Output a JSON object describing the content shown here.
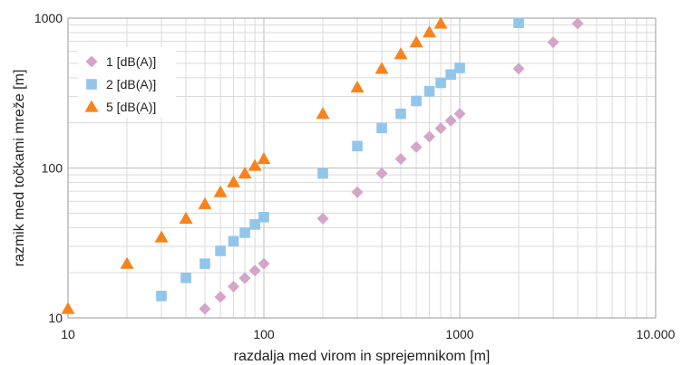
{
  "chart_data": {
    "type": "scatter",
    "xlabel": "razdalja med virom in sprejemnikom [m]",
    "ylabel": "razmik med točkami mreže [m]",
    "x_scale": "log",
    "y_scale": "log",
    "xlim": [
      10,
      10000
    ],
    "ylim": [
      10,
      1000
    ],
    "x_ticks": [
      10,
      100,
      1000,
      10000
    ],
    "x_tick_labels": [
      "10",
      "100",
      "1000",
      "10.000"
    ],
    "y_ticks": [
      10,
      100,
      1000
    ],
    "y_tick_labels": [
      "10",
      "100",
      "1000"
    ],
    "grid": true,
    "legend_position": "top-left",
    "series": [
      {
        "name": "1 [dB(A)]",
        "marker": "diamond",
        "color": "#d4a5c8",
        "points": [
          [
            50,
            11.5
          ],
          [
            60,
            13.8
          ],
          [
            70,
            16.2
          ],
          [
            80,
            18.4
          ],
          [
            90,
            20.7
          ],
          [
            100,
            23
          ],
          [
            200,
            46
          ],
          [
            300,
            69
          ],
          [
            400,
            92
          ],
          [
            500,
            115
          ],
          [
            600,
            138
          ],
          [
            700,
            162
          ],
          [
            800,
            184
          ],
          [
            900,
            207
          ],
          [
            1000,
            230
          ],
          [
            2000,
            460
          ],
          [
            3000,
            690
          ],
          [
            4000,
            920
          ]
        ]
      },
      {
        "name": "2 [dB(A)]",
        "marker": "square",
        "color": "#92c5ea",
        "points": [
          [
            30,
            14
          ],
          [
            40,
            18.5
          ],
          [
            50,
            23
          ],
          [
            60,
            28
          ],
          [
            70,
            32.5
          ],
          [
            80,
            37
          ],
          [
            90,
            42
          ],
          [
            100,
            47
          ],
          [
            200,
            92
          ],
          [
            300,
            140
          ],
          [
            400,
            185
          ],
          [
            500,
            230
          ],
          [
            600,
            280
          ],
          [
            700,
            325
          ],
          [
            800,
            370
          ],
          [
            900,
            420
          ],
          [
            1000,
            465
          ],
          [
            2000,
            930
          ]
        ]
      },
      {
        "name": "5 [dB(A)]",
        "marker": "triangle",
        "color": "#f7831e",
        "points": [
          [
            10,
            11.5
          ],
          [
            20,
            23
          ],
          [
            30,
            34.5
          ],
          [
            40,
            46
          ],
          [
            50,
            57.5
          ],
          [
            60,
            69
          ],
          [
            70,
            80.5
          ],
          [
            80,
            92
          ],
          [
            90,
            103.5
          ],
          [
            100,
            115
          ],
          [
            200,
            230
          ],
          [
            300,
            345
          ],
          [
            400,
            460
          ],
          [
            500,
            575
          ],
          [
            600,
            690
          ],
          [
            700,
            805
          ],
          [
            800,
            920
          ]
        ]
      }
    ]
  }
}
